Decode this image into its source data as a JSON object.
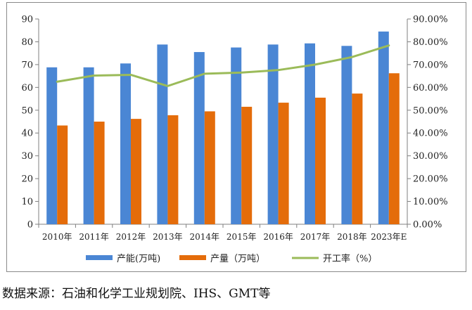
{
  "chart_data": {
    "type": "bar",
    "categories": [
      "2010年",
      "2011年",
      "2012年",
      "2013年",
      "2014年",
      "2015年",
      "2016年",
      "2017年",
      "2018年",
      "2023年E"
    ],
    "series": [
      {
        "name": "产能(万吨)",
        "type": "bar",
        "axis": "left",
        "color": "#4a86d4",
        "values": [
          68.8,
          68.8,
          70.5,
          78.8,
          75.5,
          77.5,
          78.8,
          79.3,
          78.2,
          84.5
        ]
      },
      {
        "name": "产量（万吨）",
        "type": "bar",
        "axis": "left",
        "color": "#e46c0a",
        "values": [
          43.3,
          45.0,
          46.2,
          47.8,
          49.5,
          51.5,
          53.3,
          55.5,
          57.3,
          66.2
        ]
      },
      {
        "name": "开工率（%）",
        "type": "line",
        "axis": "right",
        "color": "#9bbb59",
        "values": [
          62.5,
          65.2,
          65.5,
          60.6,
          66.0,
          66.5,
          67.6,
          70.0,
          73.3,
          78.4
        ]
      }
    ],
    "y_left": {
      "min": 0,
      "max": 90,
      "ticks": [
        "0",
        "10",
        "20",
        "30",
        "40",
        "50",
        "60",
        "70",
        "80",
        "90"
      ]
    },
    "y_right": {
      "min": 0,
      "max": 90,
      "ticks": [
        "0.00%",
        "10.00%",
        "20.00%",
        "30.00%",
        "40.00%",
        "50.00%",
        "60.00%",
        "70.00%",
        "80.00%",
        "90.00%"
      ]
    },
    "grid": false,
    "legend_position": "bottom"
  },
  "source": "数据来源：石油和化学工业规划院、IHS、GMT等"
}
